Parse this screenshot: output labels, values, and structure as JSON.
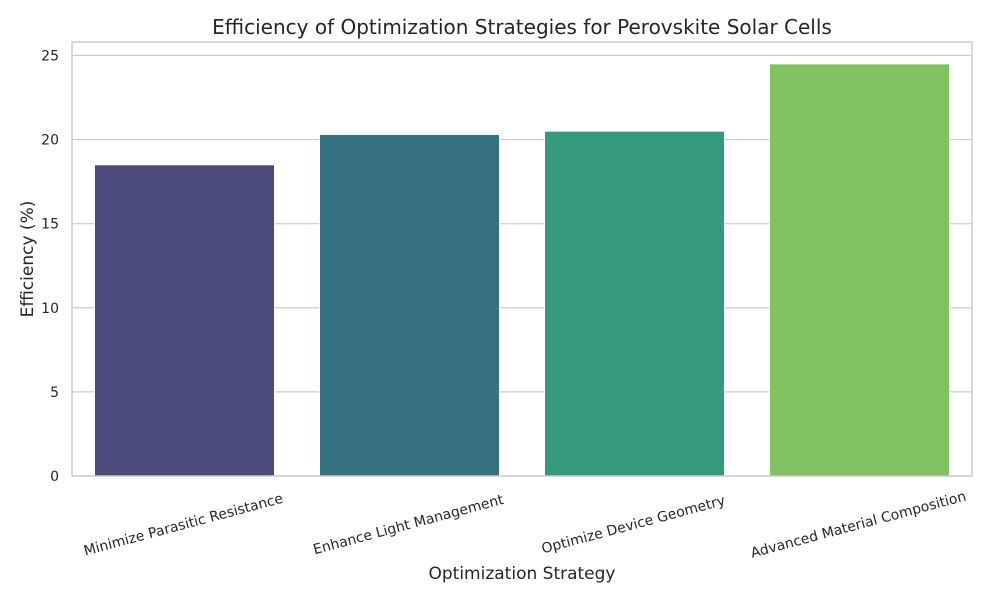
{
  "chart_data": {
    "type": "bar",
    "title": "Efficiency of Optimization Strategies for Perovskite Solar Cells",
    "xlabel": "Optimization Strategy",
    "ylabel": "Efficiency (%)",
    "categories": [
      "Minimize Parasitic Resistance",
      "Enhance Light Management",
      "Optimize Device Geometry",
      "Advanced Material Composition"
    ],
    "values": [
      18.5,
      20.3,
      20.5,
      24.5
    ],
    "ylim": [
      0,
      25.8
    ],
    "yticks": [
      0,
      5,
      10,
      15,
      20,
      25
    ],
    "grid": true,
    "legend": "none",
    "colors": [
      "#4a4a7c",
      "#367180",
      "#35997e",
      "#80c262"
    ],
    "axis_color": "#cccccc",
    "grid_color": "#cccccc",
    "text_color": "#262626"
  }
}
